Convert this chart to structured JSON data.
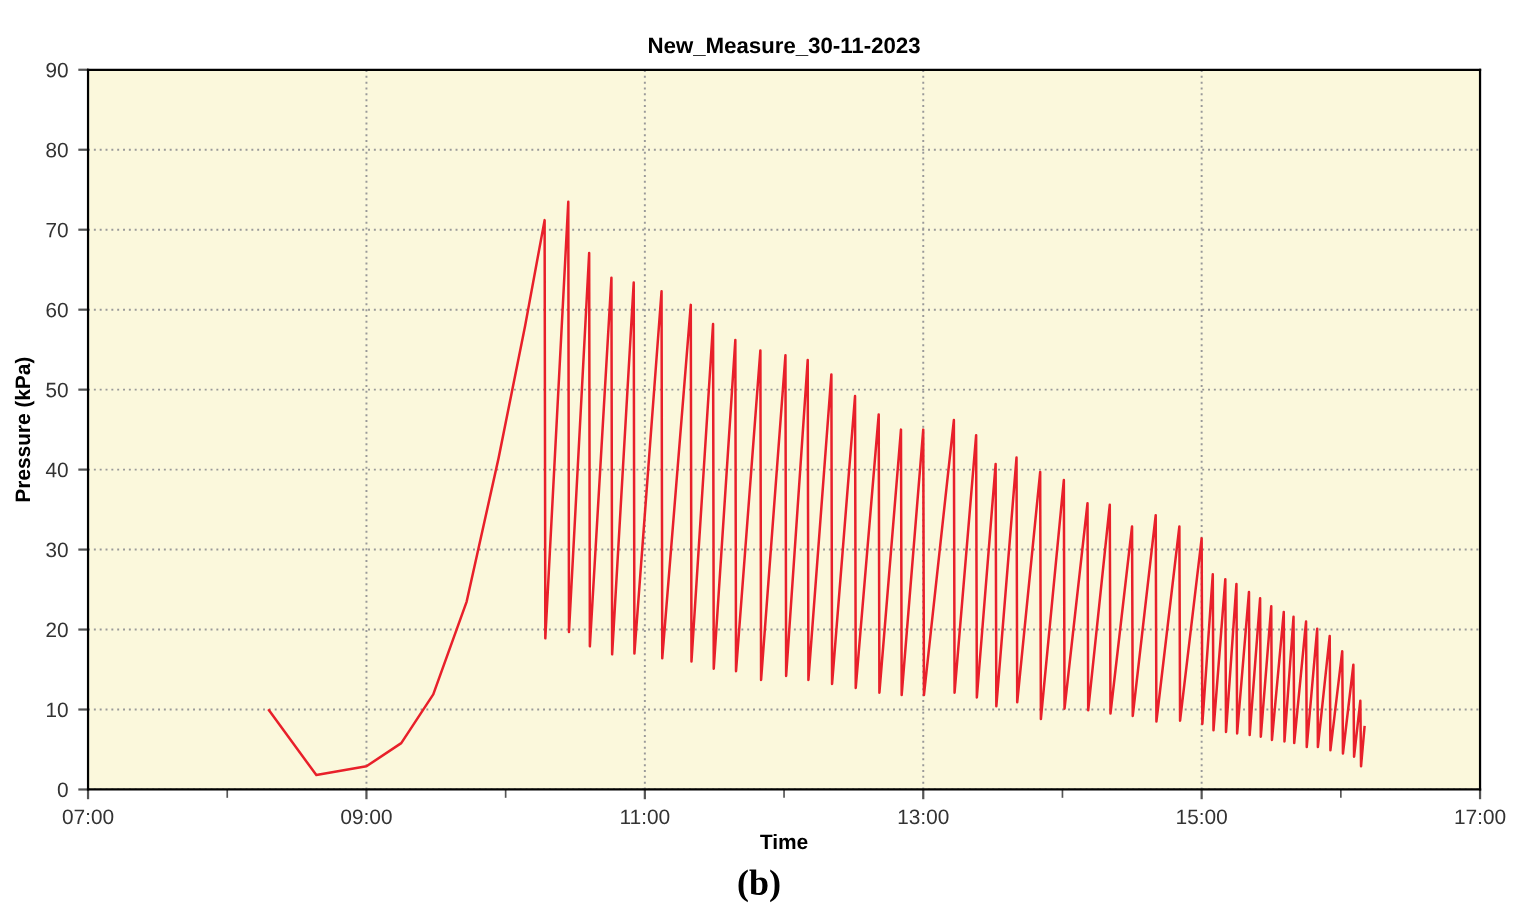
{
  "chart_data": {
    "type": "line",
    "title": "New_Measure_30-11-2023",
    "xlabel": "Time",
    "ylabel": "Pressure (kPa)",
    "annotations": [
      "(b)"
    ],
    "xlim": [
      7,
      17
    ],
    "xticks": [
      {
        "value": 7,
        "label": "07:00"
      },
      {
        "value": 8,
        "label": null
      },
      {
        "value": 9,
        "label": "09:00"
      },
      {
        "value": 10,
        "label": null
      },
      {
        "value": 11,
        "label": "11:00"
      },
      {
        "value": 12,
        "label": null
      },
      {
        "value": 13,
        "label": "13:00"
      },
      {
        "value": 14,
        "label": null
      },
      {
        "value": 15,
        "label": "15:00"
      },
      {
        "value": 16,
        "label": null
      },
      {
        "value": 17,
        "label": "17:00"
      }
    ],
    "ylim": [
      0,
      90
    ],
    "yticks": [
      0,
      10,
      20,
      30,
      40,
      50,
      60,
      70,
      80,
      90
    ],
    "grid": true,
    "marker": "none",
    "line_style": "solid",
    "series": [
      {
        "color": "#e8202a",
        "x": [
          8.3,
          8.64,
          9.0,
          9.25,
          9.48,
          9.72,
          9.95,
          10.14,
          10.28,
          10.285,
          10.45,
          10.455,
          10.6,
          10.605,
          10.76,
          10.765,
          10.92,
          10.925,
          11.12,
          11.125,
          11.33,
          11.335,
          11.49,
          11.495,
          11.65,
          11.655,
          11.83,
          11.835,
          12.01,
          12.015,
          12.17,
          12.175,
          12.34,
          12.345,
          12.51,
          12.515,
          12.68,
          12.685,
          12.84,
          12.845,
          13.0,
          13.005,
          13.22,
          13.225,
          13.38,
          13.385,
          13.52,
          13.525,
          13.67,
          13.675,
          13.84,
          13.845,
          14.01,
          14.015,
          14.18,
          14.185,
          14.34,
          14.345,
          14.5,
          14.505,
          14.67,
          14.675,
          14.84,
          14.845,
          15.0,
          15.005,
          15.08,
          15.085,
          15.17,
          15.175,
          15.25,
          15.255,
          15.34,
          15.345,
          15.42,
          15.425,
          15.5,
          15.505,
          15.59,
          15.595,
          15.66,
          15.665,
          15.75,
          15.755,
          15.83,
          15.835,
          15.92,
          15.925,
          16.01,
          16.015,
          16.09,
          16.095,
          16.14,
          16.145,
          16.17
        ],
        "values": [
          9.9,
          1.8,
          2.9,
          5.8,
          11.9,
          23.5,
          41.5,
          58.0,
          71.2,
          18.9,
          73.5,
          19.7,
          67.1,
          17.9,
          64.0,
          16.9,
          63.4,
          17.0,
          62.3,
          16.4,
          60.6,
          16.0,
          58.2,
          15.1,
          56.2,
          14.8,
          54.9,
          13.7,
          54.3,
          14.2,
          53.7,
          13.7,
          51.9,
          13.2,
          49.2,
          12.7,
          46.9,
          12.1,
          45.0,
          11.8,
          45.0,
          11.8,
          46.2,
          12.1,
          44.3,
          11.5,
          40.7,
          10.4,
          41.5,
          10.9,
          39.7,
          8.8,
          38.7,
          10.1,
          35.8,
          9.9,
          35.6,
          9.5,
          32.9,
          9.2,
          34.3,
          8.5,
          32.9,
          8.6,
          31.4,
          8.2,
          26.9,
          7.4,
          26.3,
          7.2,
          25.7,
          7.0,
          24.7,
          6.8,
          23.9,
          6.6,
          22.9,
          6.2,
          22.2,
          6.0,
          21.6,
          5.8,
          21.0,
          5.3,
          20.1,
          5.3,
          19.2,
          4.9,
          17.3,
          4.5,
          15.6,
          4.1,
          11.1,
          2.9,
          7.8
        ]
      }
    ]
  }
}
